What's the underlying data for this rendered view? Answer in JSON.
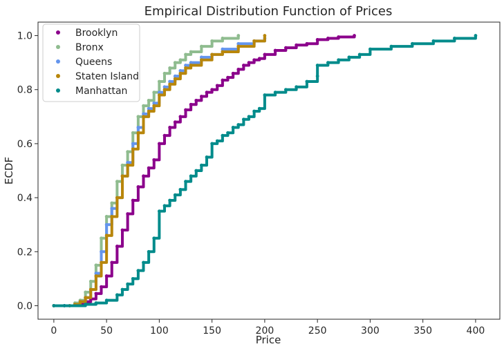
{
  "chart_data": {
    "type": "scatter",
    "title": "Empirical Distribution Function of Prices",
    "xlabel": "Price",
    "ylabel": "ECDF",
    "xlim": [
      -15,
      423
    ],
    "ylim": [
      -0.05,
      1.05
    ],
    "xticks": [
      "0",
      "50",
      "100",
      "150",
      "200",
      "250",
      "300",
      "350",
      "400"
    ],
    "yticks": [
      "0.0",
      "0.2",
      "0.4",
      "0.6",
      "0.8",
      "1.0"
    ],
    "grid": false,
    "legend_position": "top-left",
    "series": [
      {
        "name": "Brooklyn",
        "color": "#8b008b",
        "points": [
          [
            0,
            0.0
          ],
          [
            10,
            0.0
          ],
          [
            20,
            0.005
          ],
          [
            25,
            0.01
          ],
          [
            30,
            0.015
          ],
          [
            35,
            0.025
          ],
          [
            40,
            0.045
          ],
          [
            45,
            0.07
          ],
          [
            50,
            0.11
          ],
          [
            55,
            0.16
          ],
          [
            60,
            0.22
          ],
          [
            65,
            0.28
          ],
          [
            70,
            0.34
          ],
          [
            75,
            0.39
          ],
          [
            80,
            0.44
          ],
          [
            85,
            0.48
          ],
          [
            90,
            0.51
          ],
          [
            95,
            0.54
          ],
          [
            100,
            0.6
          ],
          [
            105,
            0.63
          ],
          [
            110,
            0.66
          ],
          [
            115,
            0.68
          ],
          [
            120,
            0.7
          ],
          [
            125,
            0.725
          ],
          [
            130,
            0.745
          ],
          [
            135,
            0.76
          ],
          [
            140,
            0.775
          ],
          [
            145,
            0.79
          ],
          [
            150,
            0.8
          ],
          [
            155,
            0.815
          ],
          [
            160,
            0.835
          ],
          [
            165,
            0.845
          ],
          [
            170,
            0.86
          ],
          [
            175,
            0.875
          ],
          [
            180,
            0.89
          ],
          [
            185,
            0.9
          ],
          [
            190,
            0.91
          ],
          [
            195,
            0.915
          ],
          [
            200,
            0.93
          ],
          [
            210,
            0.945
          ],
          [
            220,
            0.955
          ],
          [
            230,
            0.965
          ],
          [
            240,
            0.97
          ],
          [
            250,
            0.985
          ],
          [
            260,
            0.99
          ],
          [
            270,
            0.995
          ],
          [
            285,
            1.0
          ]
        ]
      },
      {
        "name": "Bronx",
        "color": "#8fbc8f",
        "points": [
          [
            0,
            0.0
          ],
          [
            15,
            0.0
          ],
          [
            20,
            0.01
          ],
          [
            25,
            0.02
          ],
          [
            30,
            0.05
          ],
          [
            35,
            0.09
          ],
          [
            40,
            0.15
          ],
          [
            45,
            0.25
          ],
          [
            50,
            0.33
          ],
          [
            55,
            0.38
          ],
          [
            60,
            0.46
          ],
          [
            65,
            0.52
          ],
          [
            70,
            0.57
          ],
          [
            75,
            0.64
          ],
          [
            80,
            0.7
          ],
          [
            85,
            0.74
          ],
          [
            90,
            0.76
          ],
          [
            95,
            0.79
          ],
          [
            100,
            0.83
          ],
          [
            105,
            0.86
          ],
          [
            110,
            0.88
          ],
          [
            115,
            0.9
          ],
          [
            120,
            0.91
          ],
          [
            125,
            0.93
          ],
          [
            130,
            0.94
          ],
          [
            140,
            0.96
          ],
          [
            150,
            0.98
          ],
          [
            160,
            0.99
          ],
          [
            175,
            1.0
          ]
        ]
      },
      {
        "name": "Queens",
        "color": "#6495ed",
        "points": [
          [
            0,
            0.0
          ],
          [
            15,
            0.0
          ],
          [
            20,
            0.005
          ],
          [
            25,
            0.015
          ],
          [
            30,
            0.03
          ],
          [
            35,
            0.06
          ],
          [
            40,
            0.12
          ],
          [
            45,
            0.2
          ],
          [
            50,
            0.3
          ],
          [
            55,
            0.36
          ],
          [
            60,
            0.4
          ],
          [
            65,
            0.48
          ],
          [
            70,
            0.53
          ],
          [
            75,
            0.6
          ],
          [
            80,
            0.66
          ],
          [
            85,
            0.71
          ],
          [
            90,
            0.73
          ],
          [
            95,
            0.75
          ],
          [
            100,
            0.79
          ],
          [
            105,
            0.81
          ],
          [
            110,
            0.83
          ],
          [
            115,
            0.85
          ],
          [
            120,
            0.87
          ],
          [
            125,
            0.89
          ],
          [
            130,
            0.9
          ],
          [
            140,
            0.92
          ],
          [
            150,
            0.93
          ],
          [
            160,
            0.95
          ],
          [
            175,
            0.97
          ],
          [
            190,
            0.98
          ],
          [
            200,
            0.99
          ]
        ]
      },
      {
        "name": "Staten Island",
        "color": "#b8860b",
        "points": [
          [
            0,
            0.0
          ],
          [
            15,
            0.0
          ],
          [
            20,
            0.005
          ],
          [
            25,
            0.015
          ],
          [
            30,
            0.03
          ],
          [
            35,
            0.06
          ],
          [
            40,
            0.11
          ],
          [
            45,
            0.16
          ],
          [
            50,
            0.26
          ],
          [
            55,
            0.33
          ],
          [
            60,
            0.4
          ],
          [
            65,
            0.48
          ],
          [
            70,
            0.52
          ],
          [
            75,
            0.58
          ],
          [
            80,
            0.64
          ],
          [
            85,
            0.7
          ],
          [
            90,
            0.72
          ],
          [
            95,
            0.74
          ],
          [
            100,
            0.78
          ],
          [
            105,
            0.8
          ],
          [
            110,
            0.82
          ],
          [
            115,
            0.84
          ],
          [
            120,
            0.86
          ],
          [
            125,
            0.88
          ],
          [
            130,
            0.89
          ],
          [
            140,
            0.91
          ],
          [
            150,
            0.93
          ],
          [
            160,
            0.94
          ],
          [
            175,
            0.96
          ],
          [
            190,
            0.98
          ],
          [
            200,
            1.0
          ]
        ]
      },
      {
        "name": "Manhattan",
        "color": "#008b8b",
        "points": [
          [
            0,
            0.0
          ],
          [
            10,
            0.0
          ],
          [
            30,
            0.005
          ],
          [
            40,
            0.01
          ],
          [
            50,
            0.02
          ],
          [
            60,
            0.04
          ],
          [
            65,
            0.06
          ],
          [
            70,
            0.08
          ],
          [
            75,
            0.1
          ],
          [
            80,
            0.13
          ],
          [
            85,
            0.16
          ],
          [
            90,
            0.2
          ],
          [
            95,
            0.25
          ],
          [
            100,
            0.35
          ],
          [
            105,
            0.37
          ],
          [
            110,
            0.39
          ],
          [
            115,
            0.41
          ],
          [
            120,
            0.43
          ],
          [
            125,
            0.46
          ],
          [
            130,
            0.48
          ],
          [
            135,
            0.5
          ],
          [
            140,
            0.52
          ],
          [
            145,
            0.55
          ],
          [
            150,
            0.6
          ],
          [
            155,
            0.61
          ],
          [
            160,
            0.63
          ],
          [
            165,
            0.64
          ],
          [
            170,
            0.66
          ],
          [
            175,
            0.67
          ],
          [
            180,
            0.69
          ],
          [
            185,
            0.7
          ],
          [
            190,
            0.72
          ],
          [
            195,
            0.73
          ],
          [
            200,
            0.78
          ],
          [
            210,
            0.79
          ],
          [
            220,
            0.8
          ],
          [
            230,
            0.81
          ],
          [
            240,
            0.83
          ],
          [
            250,
            0.85
          ],
          [
            250,
            0.89
          ],
          [
            260,
            0.9
          ],
          [
            270,
            0.91
          ],
          [
            280,
            0.92
          ],
          [
            290,
            0.93
          ],
          [
            300,
            0.95
          ],
          [
            320,
            0.96
          ],
          [
            340,
            0.97
          ],
          [
            360,
            0.98
          ],
          [
            380,
            0.99
          ],
          [
            400,
            1.0
          ]
        ]
      }
    ]
  }
}
